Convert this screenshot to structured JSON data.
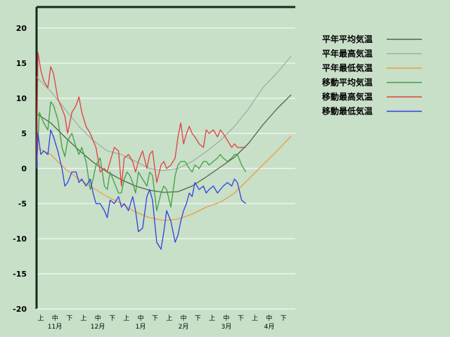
{
  "chart_data": {
    "type": "line",
    "ylim": [
      -20,
      23
    ],
    "yticks": [
      -20,
      -15,
      -10,
      -5,
      0,
      5,
      10,
      15,
      20
    ],
    "x_range_days": [
      0,
      183
    ],
    "grid": "horizontal",
    "legend_position": "right",
    "x_subticks": [
      "上",
      "中",
      "下",
      "上",
      "中",
      "下",
      "上",
      "中",
      "下",
      "上",
      "中",
      "下",
      "上",
      "中",
      "下",
      "上",
      "中",
      "下"
    ],
    "x_months": [
      "11月",
      "12月",
      "1月",
      "2月",
      "3月",
      "4月"
    ],
    "series": [
      {
        "name": "平年平均気温",
        "color": "#4a6a4a",
        "x": [
          0,
          10,
          20,
          30,
          40,
          50,
          60,
          70,
          80,
          90,
          100,
          110,
          120,
          130,
          140,
          150,
          160,
          170,
          180
        ],
        "y": [
          7.8,
          6.5,
          4.5,
          2.6,
          0.9,
          -0.5,
          -1.6,
          -2.5,
          -3.1,
          -3.4,
          -3.3,
          -2.5,
          -1.2,
          0.2,
          1.6,
          3.6,
          6.2,
          8.5,
          10.5
        ]
      },
      {
        "name": "平年最高気温",
        "color": "#a0b0a0",
        "x": [
          0,
          10,
          20,
          30,
          40,
          50,
          60,
          70,
          80,
          90,
          100,
          110,
          120,
          130,
          140,
          150,
          160,
          170,
          180
        ],
        "y": [
          13.0,
          11.0,
          8.5,
          6.0,
          4.0,
          2.5,
          2.0,
          1.0,
          0.0,
          -0.3,
          0.0,
          1.0,
          2.4,
          4.0,
          6.0,
          8.5,
          11.5,
          13.6,
          16.0
        ]
      },
      {
        "name": "平年最低気温",
        "color": "#e8a040",
        "x": [
          0,
          10,
          20,
          30,
          40,
          50,
          60,
          70,
          80,
          90,
          100,
          110,
          120,
          130,
          140,
          150,
          160,
          170,
          180
        ],
        "y": [
          3.0,
          2.0,
          0.0,
          -1.5,
          -2.8,
          -4.0,
          -5.0,
          -6.2,
          -7.0,
          -7.4,
          -7.2,
          -6.5,
          -5.5,
          -4.8,
          -3.5,
          -1.5,
          0.5,
          2.5,
          4.6
        ]
      },
      {
        "name": "移動平均気温",
        "color": "#40a040",
        "x": [
          0,
          2,
          5,
          8,
          10,
          12,
          15,
          18,
          20,
          22,
          25,
          28,
          30,
          32,
          35,
          38,
          40,
          42,
          45,
          48,
          50,
          52,
          55,
          58,
          60,
          62,
          64,
          66,
          68,
          70,
          72,
          75,
          78,
          80,
          82,
          85,
          88,
          90,
          92,
          95,
          98,
          100,
          102,
          105,
          108,
          110,
          112,
          115,
          118,
          120,
          122,
          125,
          128,
          130,
          132,
          135,
          138,
          140,
          142,
          145,
          148
        ],
        "y": [
          0,
          8.0,
          6.5,
          5.5,
          9.5,
          9.0,
          7.0,
          3.0,
          1.7,
          4.0,
          5.0,
          3.0,
          2.0,
          3.0,
          1.0,
          -3.0,
          -1.5,
          0.5,
          1.5,
          -2.5,
          -3.0,
          -0.5,
          -2.0,
          -3.5,
          -3.5,
          -1.5,
          -0.5,
          -1.0,
          -2.0,
          -3.5,
          -0.5,
          -1.5,
          -2.5,
          -0.5,
          -1.0,
          -6.0,
          -3.5,
          -2.5,
          -3.0,
          -5.5,
          -1.0,
          0.5,
          1.0,
          1.0,
          0.0,
          -0.5,
          0.5,
          0.0,
          1.0,
          1.0,
          0.5,
          1.0,
          1.5,
          2.0,
          1.5,
          1.0,
          1.5,
          2.0,
          2.0,
          0.5,
          -0.5
        ]
      },
      {
        "name": "移動最高気温",
        "color": "#e04040",
        "x": [
          0,
          1,
          3,
          5,
          8,
          10,
          12,
          15,
          18,
          20,
          22,
          25,
          28,
          30,
          32,
          35,
          38,
          40,
          42,
          45,
          48,
          50,
          52,
          55,
          58,
          60,
          62,
          65,
          68,
          70,
          72,
          75,
          78,
          80,
          82,
          85,
          88,
          90,
          92,
          95,
          98,
          100,
          102,
          104,
          106,
          108,
          110,
          112,
          115,
          118,
          120,
          122,
          125,
          128,
          130,
          132,
          135,
          138,
          140,
          142,
          145,
          148
        ],
        "y": [
          0,
          16.5,
          14.0,
          12.5,
          11.5,
          14.5,
          13.5,
          10.0,
          8.5,
          7.5,
          5.0,
          8.0,
          9.0,
          10.2,
          8.0,
          6.0,
          5.0,
          4.0,
          3.0,
          -0.5,
          0.0,
          -0.5,
          1.0,
          3.0,
          2.5,
          -2.5,
          1.5,
          2.0,
          1.0,
          -0.5,
          1.0,
          2.5,
          0.0,
          2.0,
          2.5,
          -2.0,
          0.5,
          1.0,
          0.0,
          0.5,
          1.5,
          4.5,
          6.5,
          3.5,
          5.0,
          6.0,
          5.0,
          4.5,
          3.5,
          3.0,
          5.5,
          5.0,
          5.5,
          4.5,
          5.5,
          5.0,
          4.0,
          3.0,
          3.5,
          3.0,
          3.0,
          3.0
        ]
      },
      {
        "name": "移動最低気温",
        "color": "#3040e0",
        "x": [
          0,
          1,
          3,
          5,
          8,
          10,
          12,
          15,
          18,
          20,
          22,
          25,
          28,
          30,
          32,
          35,
          38,
          40,
          42,
          45,
          48,
          50,
          52,
          55,
          58,
          60,
          62,
          65,
          68,
          70,
          72,
          75,
          78,
          80,
          82,
          85,
          88,
          90,
          92,
          95,
          98,
          100,
          102,
          104,
          106,
          108,
          110,
          112,
          115,
          118,
          120,
          122,
          125,
          128,
          130,
          132,
          135,
          138,
          140,
          142,
          145,
          148
        ],
        "y": [
          0,
          5.0,
          2.0,
          2.5,
          2.0,
          5.5,
          4.5,
          2.5,
          0.0,
          -2.5,
          -2.0,
          -0.5,
          -0.5,
          -2.0,
          -1.5,
          -2.5,
          -1.5,
          -3.5,
          -5.0,
          -5.0,
          -6.0,
          -7.0,
          -4.5,
          -5.0,
          -4.0,
          -5.5,
          -5.0,
          -6.0,
          -4.0,
          -6.0,
          -9.0,
          -8.5,
          -4.0,
          -3.0,
          -4.5,
          -10.5,
          -11.5,
          -9.0,
          -6.0,
          -7.5,
          -10.5,
          -9.5,
          -7.5,
          -6.0,
          -5.0,
          -3.5,
          -4.0,
          -2.0,
          -3.0,
          -2.5,
          -3.5,
          -3.0,
          -2.5,
          -3.5,
          -3.0,
          -2.5,
          -2.0,
          -2.5,
          -1.5,
          -2.0,
          -4.5,
          -5.0
        ]
      }
    ]
  }
}
